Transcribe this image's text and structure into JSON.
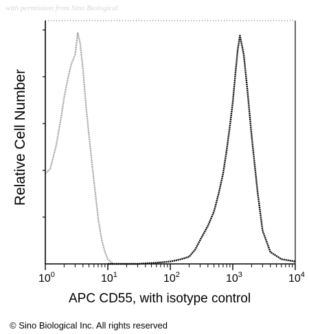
{
  "watermark": "with permission from Sino Biological",
  "copyright": "© Sino Biological Inc. All rights reserved",
  "colors": {
    "isotype": "#8a8a8a",
    "cd55": "#111111",
    "axis": "#000000"
  },
  "chart_data": {
    "type": "area",
    "title": "",
    "xlabel": "APC CD55, with isotype control",
    "ylabel": "Relative Cell Number",
    "xscale": "log",
    "xlim": [
      1,
      10000
    ],
    "ylim": [
      0,
      100
    ],
    "grid": false,
    "x_ticks": [
      {
        "base": "10",
        "exp": "0",
        "value": 1
      },
      {
        "base": "10",
        "exp": "1",
        "value": 10
      },
      {
        "base": "10",
        "exp": "2",
        "value": 100
      },
      {
        "base": "10",
        "exp": "3",
        "value": 1000
      },
      {
        "base": "10",
        "exp": "4",
        "value": 10000
      }
    ],
    "series": [
      {
        "role": "isotype",
        "x": [
          1.0,
          1.2,
          1.5,
          1.8,
          2.0,
          2.3,
          2.6,
          3.0,
          3.3,
          3.6,
          4.0,
          4.5,
          5.0,
          5.6,
          6.3,
          7.1,
          8.0,
          9.0,
          10.0,
          11.0,
          12.0
        ],
        "y": [
          38,
          40,
          50,
          62,
          70,
          78,
          84,
          88,
          97,
          93,
          82,
          66,
          54,
          42,
          30,
          18,
          10,
          5,
          2,
          1,
          0
        ]
      },
      {
        "role": "cd55",
        "x": [
          10,
          30,
          60,
          100,
          150,
          200,
          250,
          300,
          400,
          500,
          600,
          700,
          800,
          900,
          1000,
          1100,
          1200,
          1300,
          1500,
          1700,
          2000,
          2500,
          3000,
          4000,
          6000,
          10000
        ],
        "y": [
          0,
          0,
          0.5,
          1,
          2,
          3,
          6,
          10,
          16,
          22,
          30,
          38,
          48,
          58,
          68,
          80,
          90,
          96,
          88,
          74,
          54,
          30,
          14,
          5,
          2,
          1
        ]
      }
    ]
  }
}
